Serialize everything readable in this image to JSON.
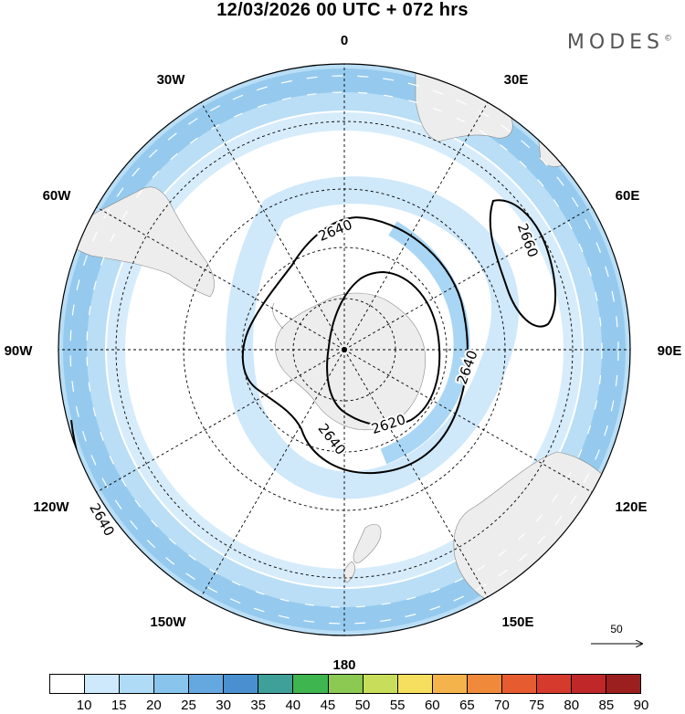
{
  "header": {
    "title": "12/03/2026  00 UTC  + 072 hrs",
    "brand": "MODES",
    "brand_mark": "©"
  },
  "map": {
    "projection": "south-polar-stereographic",
    "field": "wind speed",
    "longitude_labels": {
      "top": "0",
      "30W": "30W",
      "30E": "30E",
      "60W": "60W",
      "60E": "60E",
      "90W": "90W",
      "90E": "90E",
      "120W": "120W",
      "120E": "120E",
      "150W": "150W",
      "150E": "150E",
      "bottom": "180"
    },
    "contours": [
      {
        "value": "2620",
        "label": "2620"
      },
      {
        "value": "2640",
        "label": "2640"
      },
      {
        "value": "2660",
        "label": "2660"
      }
    ],
    "reference_vector": "50",
    "colors": {
      "land": "#ededed",
      "outer_ring": "#a7d3f2",
      "inner_ring": "#c9e6f9"
    }
  },
  "colorbar": {
    "labels": [
      "10",
      "15",
      "20",
      "25",
      "30",
      "35",
      "40",
      "45",
      "50",
      "55",
      "60",
      "65",
      "70",
      "75",
      "80",
      "85",
      "90"
    ],
    "colors": [
      "#ffffff",
      "#cde9fb",
      "#b0dbf6",
      "#88c4ec",
      "#65a8e0",
      "#4a8fcf",
      "#3ea098",
      "#3fb550",
      "#8bc952",
      "#c8de5a",
      "#f6de5e",
      "#f5b34c",
      "#f08a3a",
      "#e65b2f",
      "#d63a2c",
      "#bf2729",
      "#9c1f1f"
    ]
  }
}
